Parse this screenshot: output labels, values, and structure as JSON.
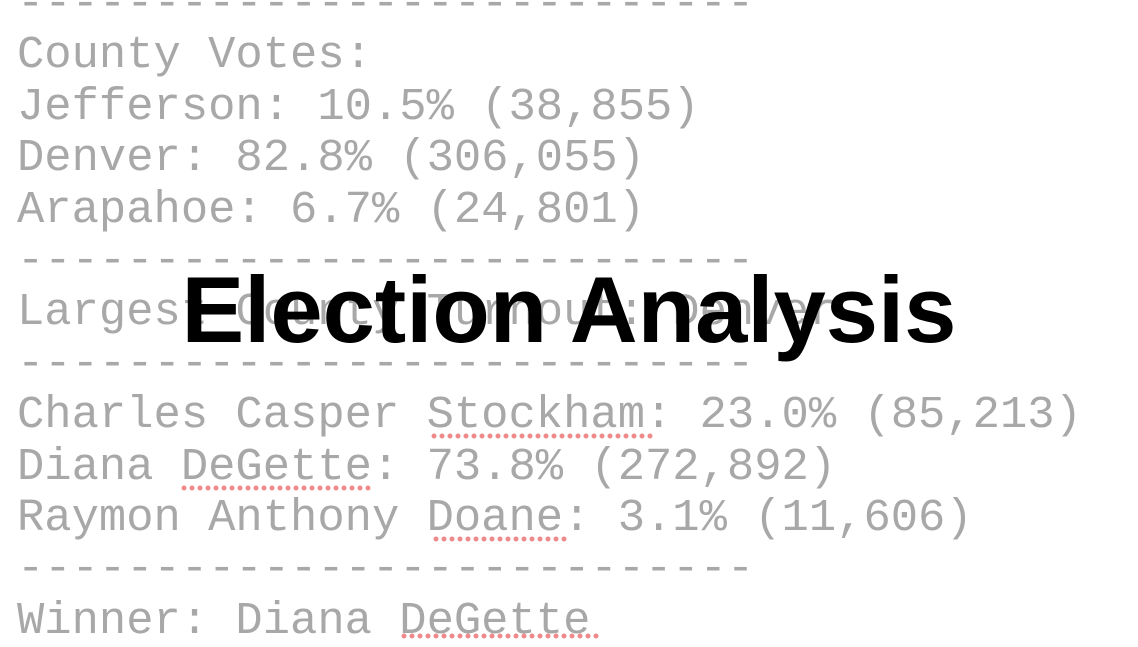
{
  "lines": [
    "---------------------------",
    "County Votes:",
    "Jefferson: 10.5% (38,855)",
    "Denver: 82.8% (306,055)",
    "Arapahoe: 6.7% (24,801)",
    "---------------------------",
    "Largest County Turnout: Denver",
    "---------------------------",
    "Charles Casper Stockham: 23.0% (85,213)",
    "Diana DeGette: 73.8% (272,892)",
    "Raymon Anthony Doane: 3.1% (11,606)",
    "---------------------------",
    "Winner: Diana DeGette"
  ],
  "title": "Election Analysis"
}
